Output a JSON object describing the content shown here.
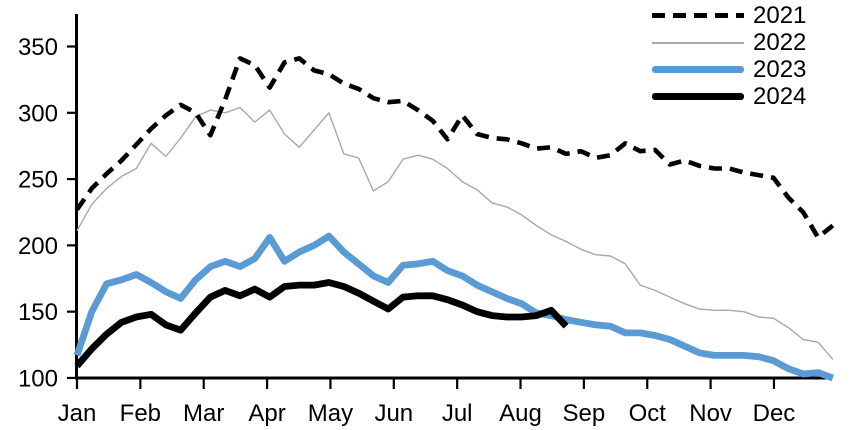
{
  "chart_data": {
    "type": "line",
    "title": "",
    "x_axis": {
      "tick_labels": [
        "Jan",
        "Feb",
        "Mar",
        "Apr",
        "May",
        "Jun",
        "Jul",
        "Aug",
        "Sep",
        "Oct",
        "Nov",
        "Dec"
      ],
      "unit": "week-of-year",
      "points_per_series": 52
    },
    "y_axis": {
      "tick_labels": [
        "100",
        "150",
        "200",
        "250",
        "300",
        "350"
      ],
      "ticks": [
        100,
        150,
        200,
        250,
        300,
        350
      ],
      "range": [
        100,
        375
      ],
      "grid": "off"
    },
    "legend": {
      "position": "top-right",
      "entries": [
        "2021",
        "2022",
        "2023",
        "2024"
      ]
    },
    "colors": {
      "black": "#000000",
      "gray": "#a8a8a8",
      "blue": "#5b9bd5"
    },
    "series": [
      {
        "name": "2021",
        "style": "dashed",
        "color": "#000000",
        "width": 4.6,
        "values": [
          227,
          243,
          254,
          264,
          276,
          288,
          298,
          306,
          300,
          283,
          310,
          341,
          336,
          319,
          338,
          341,
          332,
          329,
          322,
          318,
          311,
          308,
          309,
          302,
          294,
          280,
          298,
          284,
          281,
          280,
          277,
          273,
          274,
          269,
          271,
          266,
          268,
          277,
          271,
          272,
          261,
          264,
          260,
          258,
          258,
          255,
          253,
          251,
          236,
          225,
          206,
          215
        ]
      },
      {
        "name": "2022",
        "style": "solid",
        "color": "#a8a8a8",
        "width": 1.4,
        "values": [
          211,
          231,
          243,
          252,
          258,
          277,
          267,
          281,
          297,
          302,
          300,
          304,
          293,
          302,
          284,
          274,
          287,
          300,
          269,
          266,
          241,
          248,
          265,
          268,
          265,
          258,
          248,
          242,
          232,
          229,
          223,
          215,
          208,
          203,
          197,
          193,
          192,
          186,
          170,
          166,
          161,
          156,
          152,
          151,
          151,
          150,
          146,
          145,
          138,
          129,
          127,
          114
        ]
      },
      {
        "name": "2023",
        "style": "solid",
        "color": "#5b9bd5",
        "width": 6.8,
        "values": [
          117,
          150,
          171,
          174,
          178,
          172,
          165,
          160,
          174,
          184,
          188,
          184,
          190,
          206,
          188,
          195,
          200,
          207,
          195,
          186,
          177,
          172,
          185,
          186,
          188,
          181,
          177,
          170,
          165,
          160,
          156,
          149,
          147,
          144,
          142,
          140,
          139,
          134,
          134,
          132,
          129,
          124,
          119,
          117,
          117,
          117,
          116,
          113,
          107,
          103,
          104,
          100
        ]
      },
      {
        "name": "2024",
        "style": "solid",
        "color": "#000000",
        "width": 6.8,
        "values": [
          109,
          122,
          133,
          142,
          146,
          148,
          140,
          136,
          149,
          161,
          166,
          162,
          167,
          161,
          169,
          170,
          170,
          172,
          169,
          164,
          158,
          152,
          161,
          162,
          162,
          159,
          155,
          150,
          147,
          146,
          146,
          147,
          151,
          139
        ]
      }
    ]
  }
}
